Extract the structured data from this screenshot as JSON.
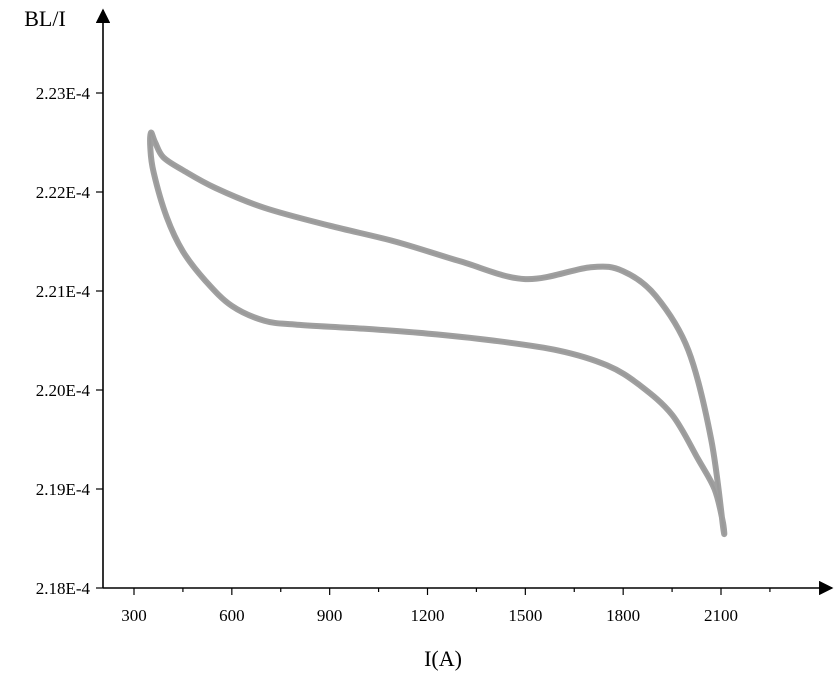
{
  "chart_data": {
    "type": "line",
    "title": "",
    "xlabel": "I(A)",
    "ylabel": "BL/I",
    "xlim": [
      200,
      2400
    ],
    "ylim": [
      0.000218,
      0.0002235
    ],
    "x_ticks": [
      300,
      600,
      900,
      1200,
      1500,
      1800,
      2100
    ],
    "x_tick_labels": [
      "300",
      "600",
      "900",
      "1200",
      "1500",
      "1800",
      "2100"
    ],
    "x_minor_ticks": [
      450,
      750,
      1050,
      1350,
      1650,
      1950,
      2250
    ],
    "y_ticks": [
      0.000218,
      0.000219,
      0.00022,
      0.000221,
      0.000222,
      0.000223
    ],
    "y_tick_labels": [
      "2.18E-4",
      "2.19E-4",
      "2.20E-4",
      "2.21E-4",
      "2.22E-4",
      "2.23E-4"
    ],
    "grid": false,
    "legend": "none",
    "colors": {
      "series": "#a0a0a0",
      "axis": "#000000"
    },
    "series": [
      {
        "points": [
          [
            2107,
            0.0002186
          ],
          [
            2070,
            0.0002195
          ],
          [
            2000,
            0.0002204
          ],
          [
            1900,
            0.00022095
          ],
          [
            1800,
            0.0002212
          ],
          [
            1700,
            0.00022124
          ],
          [
            1500,
            0.00022112
          ],
          [
            1300,
            0.0002213
          ],
          [
            1100,
            0.0002215
          ],
          [
            900,
            0.00022166
          ],
          [
            700,
            0.00022184
          ],
          [
            550,
            0.00022204
          ],
          [
            450,
            0.00022222
          ],
          [
            390,
            0.00022235
          ],
          [
            365,
            0.0002225
          ],
          [
            352,
            0.0002226
          ],
          [
            350,
            0.00022245
          ],
          [
            360,
            0.0002222
          ],
          [
            400,
            0.00022175
          ],
          [
            450,
            0.0002214
          ],
          [
            520,
            0.0002211
          ],
          [
            600,
            0.00022085
          ],
          [
            700,
            0.0002207
          ],
          [
            800,
            0.00022066
          ],
          [
            1000,
            0.00022062
          ],
          [
            1200,
            0.00022057
          ],
          [
            1400,
            0.0002205
          ],
          [
            1600,
            0.0002204
          ],
          [
            1750,
            0.00022025
          ],
          [
            1850,
            0.00022005
          ],
          [
            1950,
            0.00021975
          ],
          [
            2030,
            0.0002193
          ],
          [
            2080,
            0.000219
          ],
          [
            2105,
            0.00021868
          ]
        ]
      }
    ]
  }
}
